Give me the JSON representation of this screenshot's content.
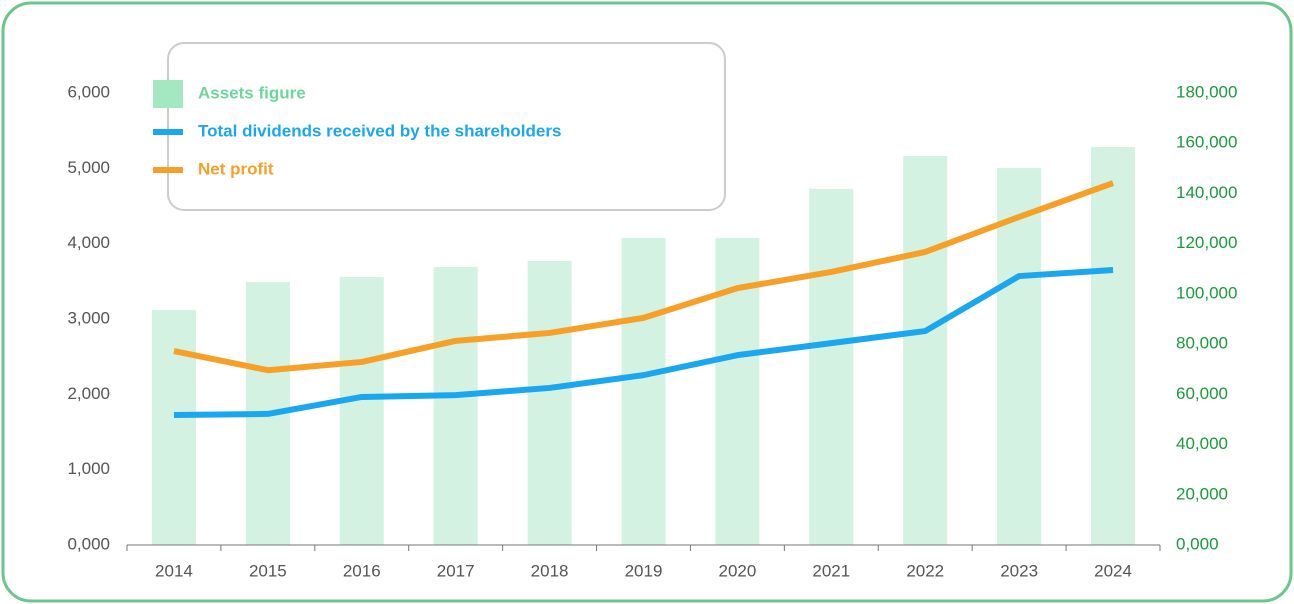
{
  "chart_data": {
    "type": "bar_line",
    "categories": [
      "2014",
      "2015",
      "2016",
      "2017",
      "2018",
      "2019",
      "2020",
      "2021",
      "2022",
      "2023",
      "2024"
    ],
    "series": [
      {
        "name": "Assets figure",
        "type": "bar",
        "axis": "y2",
        "color": "#d3f2e1",
        "legend_color": "#a4e8c2",
        "text_color": "#6ed69a",
        "values": [
          93600,
          104700,
          106700,
          110700,
          113100,
          122300,
          122300,
          141800,
          154900,
          150100,
          158500
        ]
      },
      {
        "name": "Total dividends received by the shareholders",
        "type": "line",
        "color": "#1aa7f0",
        "text_color": "#1aa7f0",
        "values": [
          1725,
          1740,
          1965,
          1990,
          2085,
          2255,
          2520,
          2680,
          2840,
          3570,
          3650
        ]
      },
      {
        "name": "Net profit",
        "type": "line",
        "color": "#f7a028",
        "text_color": "#f7a028",
        "values": [
          2575,
          2320,
          2430,
          2710,
          2815,
          3015,
          3410,
          3625,
          3890,
          4355,
          4805
        ]
      }
    ],
    "ylim": [
      0,
      6000
    ],
    "yticks": [
      {
        "value": 0,
        "label": "0,000"
      },
      {
        "value": 1000,
        "label": "1,000"
      },
      {
        "value": 2000,
        "label": "2,000"
      },
      {
        "value": 3000,
        "label": "3,000"
      },
      {
        "value": 4000,
        "label": "4,000"
      },
      {
        "value": 5000,
        "label": "5,000"
      },
      {
        "value": 6000,
        "label": "6,000"
      }
    ],
    "y2lim": [
      0,
      180000
    ],
    "y2ticks": [
      {
        "value": 0,
        "label": "0,000"
      },
      {
        "value": 20000,
        "label": "20,000"
      },
      {
        "value": 40000,
        "label": "40,000"
      },
      {
        "value": 60000,
        "label": "60,000"
      },
      {
        "value": 80000,
        "label": "80,000"
      },
      {
        "value": 100000,
        "label": "100,000"
      },
      {
        "value": 120000,
        "label": "120,000"
      },
      {
        "value": 140000,
        "label": "140,000"
      },
      {
        "value": 160000,
        "label": "160,000"
      },
      {
        "value": 180000,
        "label": "180,000"
      }
    ],
    "y2_color": "#1a9a3a",
    "grid": false
  }
}
